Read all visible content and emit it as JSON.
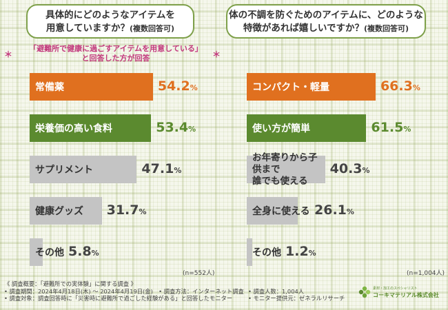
{
  "chart_data": [
    {
      "type": "bar",
      "title_line1": "具体的にどのようなアイテムを",
      "title_line2": "用意していますか？",
      "title_suffix": "(複数回答可)",
      "note_line1": "「避難所で健康に過ごすアイテムを用意している」",
      "note_line2": "と回答した方が回答",
      "categories": [
        "常備薬",
        "栄養価の高い食料",
        "サプリメント",
        "健康グッズ",
        "その他"
      ],
      "values": [
        54.2,
        53.4,
        47.1,
        31.7,
        5.8
      ],
      "value_labels": [
        "54.2",
        "53.4",
        "47.1",
        "31.7",
        "5.8"
      ],
      "unit": "%",
      "sample": "(n=552人)",
      "colors": [
        "orange",
        "green",
        "gray",
        "gray",
        "gray"
      ]
    },
    {
      "type": "bar",
      "title_line1": "体の不調を防ぐためのアイテムに、どのような",
      "title_line2": "特徴があれば嬉しいですか？",
      "title_suffix": "(複数回答可)",
      "categories": [
        "コンパクト・軽量",
        "使い方が簡単",
        "お年寄りから子供まで誰でも使える",
        "全身に使える",
        "その他"
      ],
      "category_lines": [
        [
          "コンパクト・軽量"
        ],
        [
          "使い方が簡単"
        ],
        [
          "お年寄りから子供まで",
          "誰でも使える"
        ],
        [
          "全身に使える"
        ],
        [
          "その他"
        ]
      ],
      "values": [
        66.3,
        61.5,
        40.3,
        26.1,
        1.2
      ],
      "value_labels": [
        "66.3",
        "61.5",
        "40.3",
        "26.1",
        "1.2"
      ],
      "unit": "%",
      "sample": "(n=1,004人)",
      "colors": [
        "orange",
        "green",
        "gray",
        "gray",
        "gray"
      ]
    }
  ],
  "note_star": "＊",
  "footer": {
    "line1": "《 調査概要：「避難所での実体験」に関する調査 》",
    "line2": "• 調査期間：2024年4月18日(木) ～ 2024年4月19日(金)　• 調査方法：インターネット調査",
    "line3": "• 調査対象：調査回答時に「災害時に避難所で過ごした経験がある」と回答したモニター",
    "line2b": "• 調査人数：1,004人",
    "line3b": "• モニター提供元：ゼネラルリサーチ"
  },
  "logo": {
    "tagline": "素材・加工のスペシャリスト",
    "name": "コーキマテリアル株式会社"
  },
  "colors": {
    "orange": "#e0701f",
    "green": "#5b8a2f",
    "gray": "#c4c4c4",
    "accent_border": "#7ea04a",
    "note": "#c2387c"
  }
}
